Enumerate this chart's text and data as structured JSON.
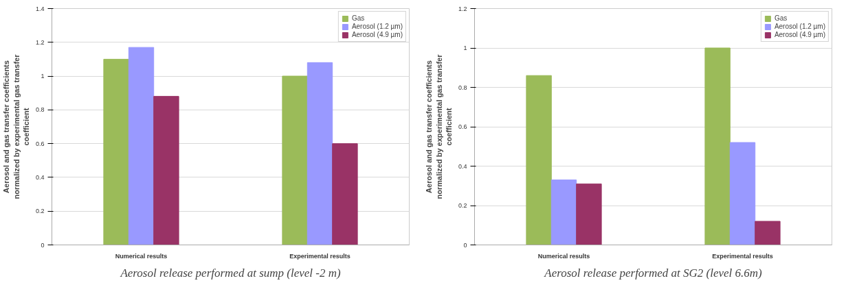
{
  "chart_data": [
    {
      "type": "bar",
      "categories": [
        "Numerical results",
        "Experimental results"
      ],
      "ylabel": "Aerosol and gas transfer coefficients normalized by experimental gas transfer coefficient",
      "ylim": [
        0,
        1.4
      ],
      "yticks": [
        0,
        0.2,
        0.4,
        0.6,
        0.8,
        1,
        1.2,
        1.4
      ],
      "grid": "y",
      "legend": "top right",
      "series": [
        {
          "name": "Gas",
          "color": "#9bbb59",
          "values": [
            1.1,
            1.0
          ]
        },
        {
          "name": "Aerosol (1.2 µm)",
          "color": "#9999ff",
          "values": [
            1.17,
            1.08
          ]
        },
        {
          "name": "Aerosol (4.9 µm)",
          "color": "#993366",
          "values": [
            0.88,
            0.6
          ]
        }
      ],
      "annotations": [
        "Aerosol release performed at sump (level -2 m)"
      ]
    },
    {
      "type": "bar",
      "categories": [
        "Numerical results",
        "Experimental results"
      ],
      "ylabel": "Aerosol and gas transfer coefficients normalized by experimental gas transfer coefficient",
      "ylim": [
        0,
        1.2
      ],
      "yticks": [
        0,
        0.2,
        0.4,
        0.6,
        0.8,
        1,
        1.2
      ],
      "grid": "y",
      "legend": "top right",
      "series": [
        {
          "name": "Gas",
          "color": "#9bbb59",
          "values": [
            0.86,
            1.0
          ]
        },
        {
          "name": "Aerosol (1.2 µm)",
          "color": "#9999ff",
          "values": [
            0.33,
            0.52
          ]
        },
        {
          "name": "Aerosol (4.9 µm)",
          "color": "#993366",
          "values": [
            0.31,
            0.12
          ]
        }
      ],
      "annotations": [
        "Aerosol release performed at SG2 (level 6.6m)"
      ]
    }
  ]
}
